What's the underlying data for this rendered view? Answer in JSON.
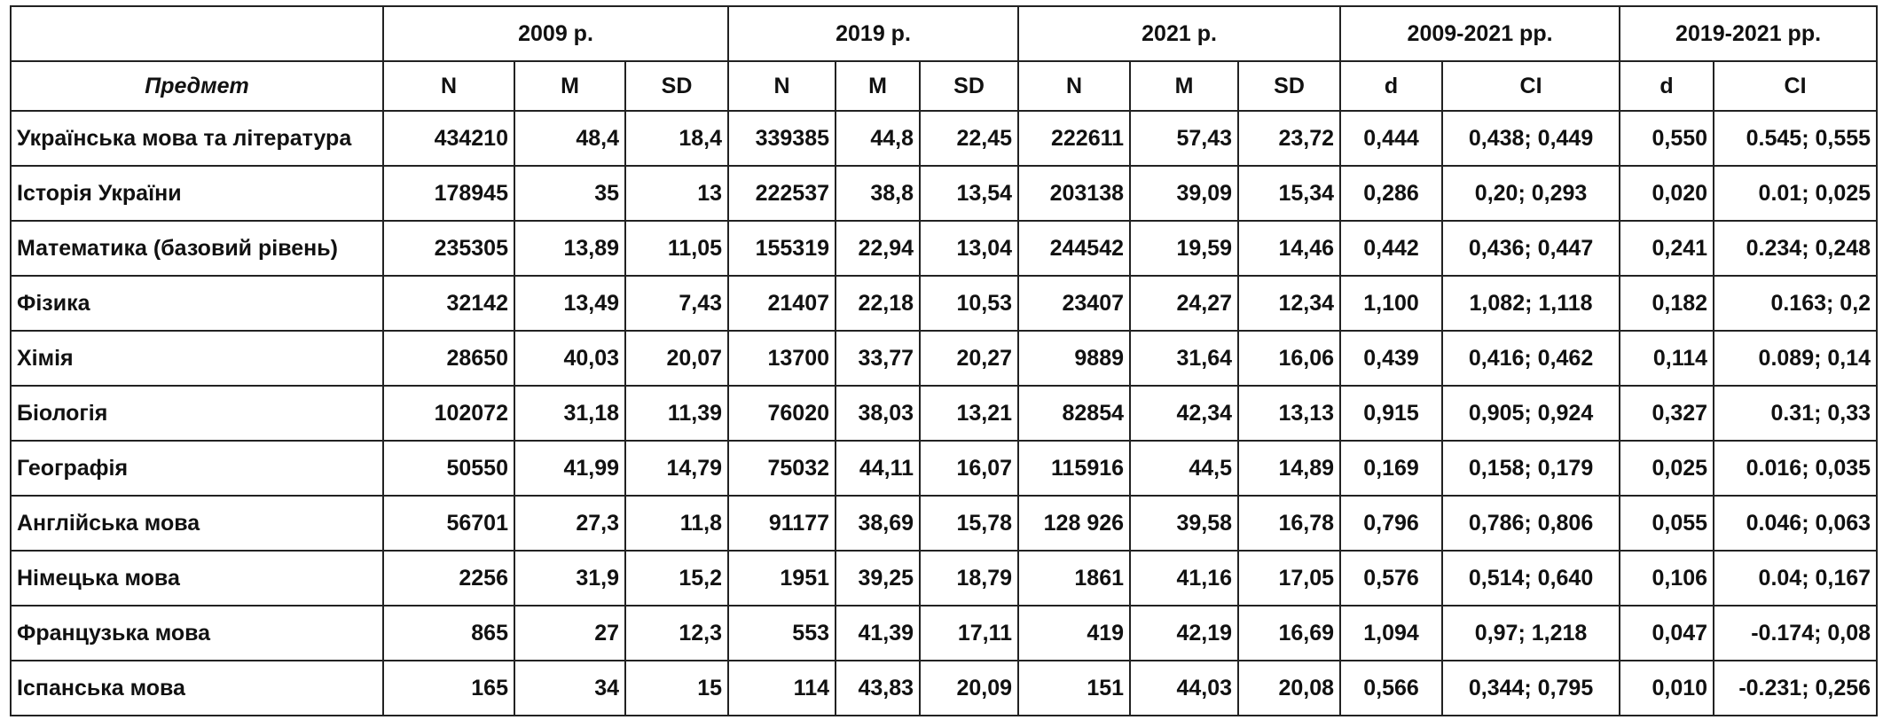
{
  "header": {
    "groups": [
      "2009 р.",
      "2019 р.",
      "2021 р.",
      "2009-2021 рр.",
      "2019-2021 рр."
    ],
    "columns": [
      "Предмет",
      "N",
      "M",
      "SD",
      "N",
      "M",
      "SD",
      "N",
      "M",
      "SD",
      "d",
      "CI",
      "d",
      "CI"
    ]
  },
  "table": {
    "rows": [
      [
        "Українська мова та література",
        "434210",
        "48,4",
        "18,4",
        "339385",
        "44,8",
        "22,45",
        "222611",
        "57,43",
        "23,72",
        "0,444",
        "0,438; 0,449",
        "0,550",
        "0.545; 0,555"
      ],
      [
        "Історія України",
        "178945",
        "35",
        "13",
        "222537",
        "38,8",
        "13,54",
        "203138",
        "39,09",
        "15,34",
        "0,286",
        "0,20; 0,293",
        "0,020",
        "0.01; 0,025"
      ],
      [
        "Математика (базовий рівень)",
        "235305",
        "13,89",
        "11,05",
        "155319",
        "22,94",
        "13,04",
        "244542",
        "19,59",
        "14,46",
        "0,442",
        "0,436; 0,447",
        "0,241",
        "0.234; 0,248"
      ],
      [
        "Фізика",
        "32142",
        "13,49",
        "7,43",
        "21407",
        "22,18",
        "10,53",
        "23407",
        "24,27",
        "12,34",
        "1,100",
        "1,082; 1,118",
        "0,182",
        "0.163; 0,2"
      ],
      [
        "Хімія",
        "28650",
        "40,03",
        "20,07",
        "13700",
        "33,77",
        "20,27",
        "9889",
        "31,64",
        "16,06",
        "0,439",
        "0,416; 0,462",
        "0,114",
        "0.089; 0,14"
      ],
      [
        "Біологія",
        "102072",
        "31,18",
        "11,39",
        "76020",
        "38,03",
        "13,21",
        "82854",
        "42,34",
        "13,13",
        "0,915",
        "0,905; 0,924",
        "0,327",
        "0.31; 0,33"
      ],
      [
        "Географія",
        "50550",
        "41,99",
        "14,79",
        "75032",
        "44,11",
        "16,07",
        "115916",
        "44,5",
        "14,89",
        "0,169",
        "0,158; 0,179",
        "0,025",
        "0.016; 0,035"
      ],
      [
        "Англійська мова",
        "56701",
        "27,3",
        "11,8",
        "91177",
        "38,69",
        "15,78",
        "128 926",
        "39,58",
        "16,78",
        "0,796",
        "0,786; 0,806",
        "0,055",
        "0.046; 0,063"
      ],
      [
        "Німецька мова",
        "2256",
        "31,9",
        "15,2",
        "1951",
        "39,25",
        "18,79",
        "1861",
        "41,16",
        "17,05",
        "0,576",
        "0,514; 0,640",
        "0,106",
        "0.04; 0,167"
      ],
      [
        "Французька мова",
        "865",
        "27",
        "12,3",
        "553",
        "41,39",
        "17,11",
        "419",
        "42,19",
        "16,69",
        "1,094",
        "0,97; 1,218",
        "0,047",
        "-0.174; 0,08"
      ],
      [
        "Іспанська мова",
        "165",
        "34",
        "15",
        "114",
        "43,83",
        "20,09",
        "151",
        "44,03",
        "20,08",
        "0,566",
        "0,344; 0,795",
        "0,010",
        "-0.231; 0,256"
      ]
    ]
  }
}
